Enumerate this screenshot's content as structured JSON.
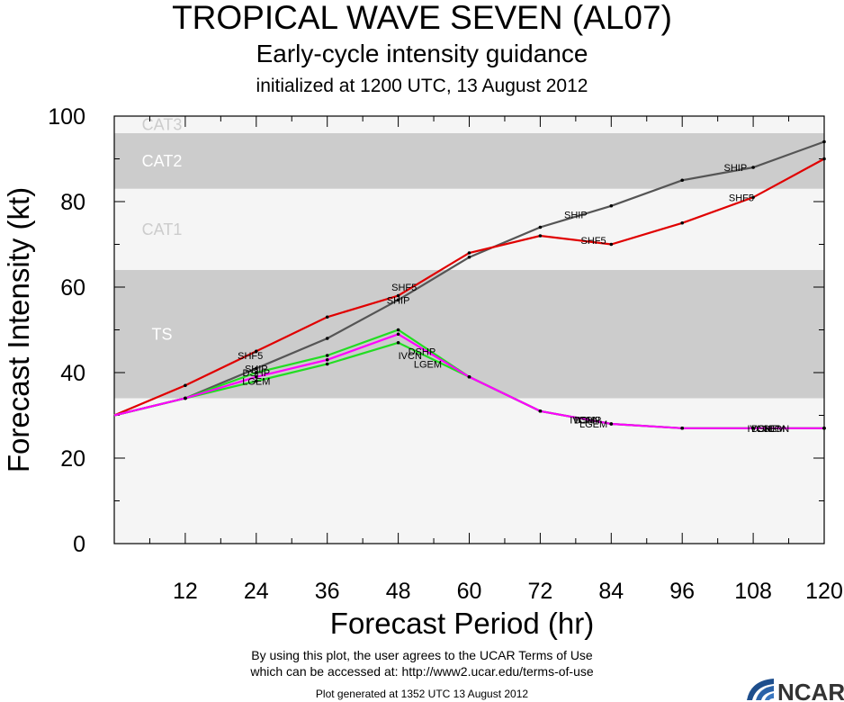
{
  "header": {
    "title": "TROPICAL WAVE SEVEN (AL07)",
    "subtitle": "Early-cycle intensity guidance",
    "initialized": "initialized at 1200 UTC, 13 August 2012"
  },
  "footer": {
    "terms_line1": "By using this plot, the user agrees to the UCAR Terms of Use",
    "terms_line2": "which can be accessed at: http://www2.ucar.edu/terms-of-use",
    "generated": "Plot generated at 1352 UTC   13 August 2012",
    "logo_text": "NCAR"
  },
  "chart_data": {
    "type": "line",
    "title": "TROPICAL WAVE SEVEN (AL07)",
    "xlabel": "Forecast Period (hr)",
    "ylabel": "Forecast Intensity (kt)",
    "xlim": [
      0,
      120
    ],
    "ylim": [
      0,
      100
    ],
    "xticks": [
      12,
      24,
      36,
      48,
      60,
      72,
      84,
      96,
      108,
      120
    ],
    "yticks": [
      0,
      20,
      40,
      60,
      80,
      100
    ],
    "bands": [
      {
        "label": "",
        "from": 0,
        "to": 34,
        "color": "#f5f5f5"
      },
      {
        "label": "TS",
        "from": 34,
        "to": 64,
        "color": "#cccccc"
      },
      {
        "label": "CAT1",
        "from": 64,
        "to": 83,
        "color": "#f5f5f5"
      },
      {
        "label": "CAT2",
        "from": 83,
        "to": 96,
        "color": "#cccccc"
      },
      {
        "label": "CAT3",
        "from": 96,
        "to": 100,
        "color": "#f5f5f5"
      }
    ],
    "series": [
      {
        "name": "SHIP",
        "color": "#555555",
        "x": [
          0,
          12,
          24,
          36,
          48,
          60,
          72,
          84,
          96,
          108,
          120
        ],
        "y": [
          30,
          34,
          41,
          48,
          57,
          67,
          74,
          79,
          85,
          88,
          94
        ]
      },
      {
        "name": "SHF5",
        "color": "#e00000",
        "x": [
          0,
          12,
          24,
          36,
          48,
          60,
          72,
          84,
          96,
          108,
          120
        ],
        "y": [
          30,
          37,
          45,
          53,
          58,
          68,
          72,
          70,
          75,
          81,
          90
        ]
      },
      {
        "name": "DSHP",
        "color": "#22dd22",
        "x": [
          0,
          12,
          24,
          36,
          48,
          60,
          72,
          84,
          96,
          108,
          120
        ],
        "y": [
          30,
          34,
          40,
          44,
          50,
          39,
          31,
          28,
          27,
          27,
          27
        ]
      },
      {
        "name": "LGEM",
        "color": "#22dd22",
        "x": [
          0,
          12,
          24,
          36,
          48,
          60,
          72,
          84,
          96,
          108,
          120
        ],
        "y": [
          30,
          34,
          38,
          42,
          47,
          39,
          31,
          28,
          27,
          27,
          27
        ]
      },
      {
        "name": "ICON",
        "color": "#ff00ff",
        "x": [
          0,
          12,
          24,
          36,
          48,
          60,
          72,
          84,
          96,
          108,
          120
        ],
        "y": [
          30,
          34,
          39,
          43,
          49,
          39,
          31,
          28,
          27,
          27,
          27
        ]
      }
    ],
    "labels": [
      {
        "text": "SHIP",
        "x": 24,
        "y": 41
      },
      {
        "text": "SHIP",
        "x": 48,
        "y": 57
      },
      {
        "text": "SHIP",
        "x": 78,
        "y": 77
      },
      {
        "text": "SHIP",
        "x": 105,
        "y": 88
      },
      {
        "text": "SHF5",
        "x": 23,
        "y": 44
      },
      {
        "text": "SHF5",
        "x": 49,
        "y": 60
      },
      {
        "text": "SHF5",
        "x": 81,
        "y": 71
      },
      {
        "text": "SHF5",
        "x": 106,
        "y": 81
      },
      {
        "text": "DSHP",
        "x": 24,
        "y": 40
      },
      {
        "text": "LGEM",
        "x": 24,
        "y": 38
      },
      {
        "text": "DSHP",
        "x": 52,
        "y": 45
      },
      {
        "text": "LGEM",
        "x": 53,
        "y": 42
      },
      {
        "text": "IVCN",
        "x": 50,
        "y": 44
      },
      {
        "text": "IVCN",
        "x": 79,
        "y": 29
      },
      {
        "text": "DSHP",
        "x": 80,
        "y": 29
      },
      {
        "text": "LGEM",
        "x": 81,
        "y": 28
      },
      {
        "text": "ICON",
        "x": 80,
        "y": 29
      },
      {
        "text": "IVCN",
        "x": 109,
        "y": 27
      },
      {
        "text": "DSHP",
        "x": 110,
        "y": 27
      },
      {
        "text": "LGEM",
        "x": 111,
        "y": 27
      },
      {
        "text": "ICON",
        "x": 112,
        "y": 27
      }
    ]
  }
}
